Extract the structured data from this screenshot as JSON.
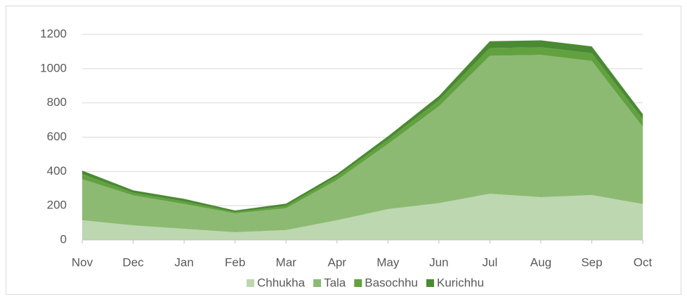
{
  "chart_data": {
    "type": "stacked_area",
    "categories": [
      "Nov",
      "Dec",
      "Jan",
      "Feb",
      "Mar",
      "Apr",
      "May",
      "Jun",
      "Jul",
      "Aug",
      "Sep",
      "Oct"
    ],
    "series": [
      {
        "name": "Chhukha",
        "color": "#bdd7b0",
        "values": [
          115,
          85,
          65,
          45,
          58,
          115,
          180,
          215,
          270,
          250,
          262,
          210
        ]
      },
      {
        "name": "Tala",
        "color": "#8cba72",
        "values": [
          240,
          175,
          145,
          110,
          127,
          235,
          380,
          565,
          805,
          830,
          783,
          450
        ]
      },
      {
        "name": "Basochhu",
        "color": "#62a140",
        "values": [
          30,
          15,
          15,
          7,
          13,
          20,
          25,
          35,
          45,
          45,
          45,
          45
        ]
      },
      {
        "name": "Kurichhu",
        "color": "#4a8a32",
        "values": [
          20,
          15,
          15,
          10,
          14,
          15,
          20,
          25,
          40,
          40,
          40,
          30
        ]
      }
    ],
    "ylim": [
      0,
      1200
    ],
    "yticks": [
      0,
      200,
      400,
      600,
      800,
      1000,
      1200
    ],
    "grid": true,
    "legend": "bottom"
  }
}
